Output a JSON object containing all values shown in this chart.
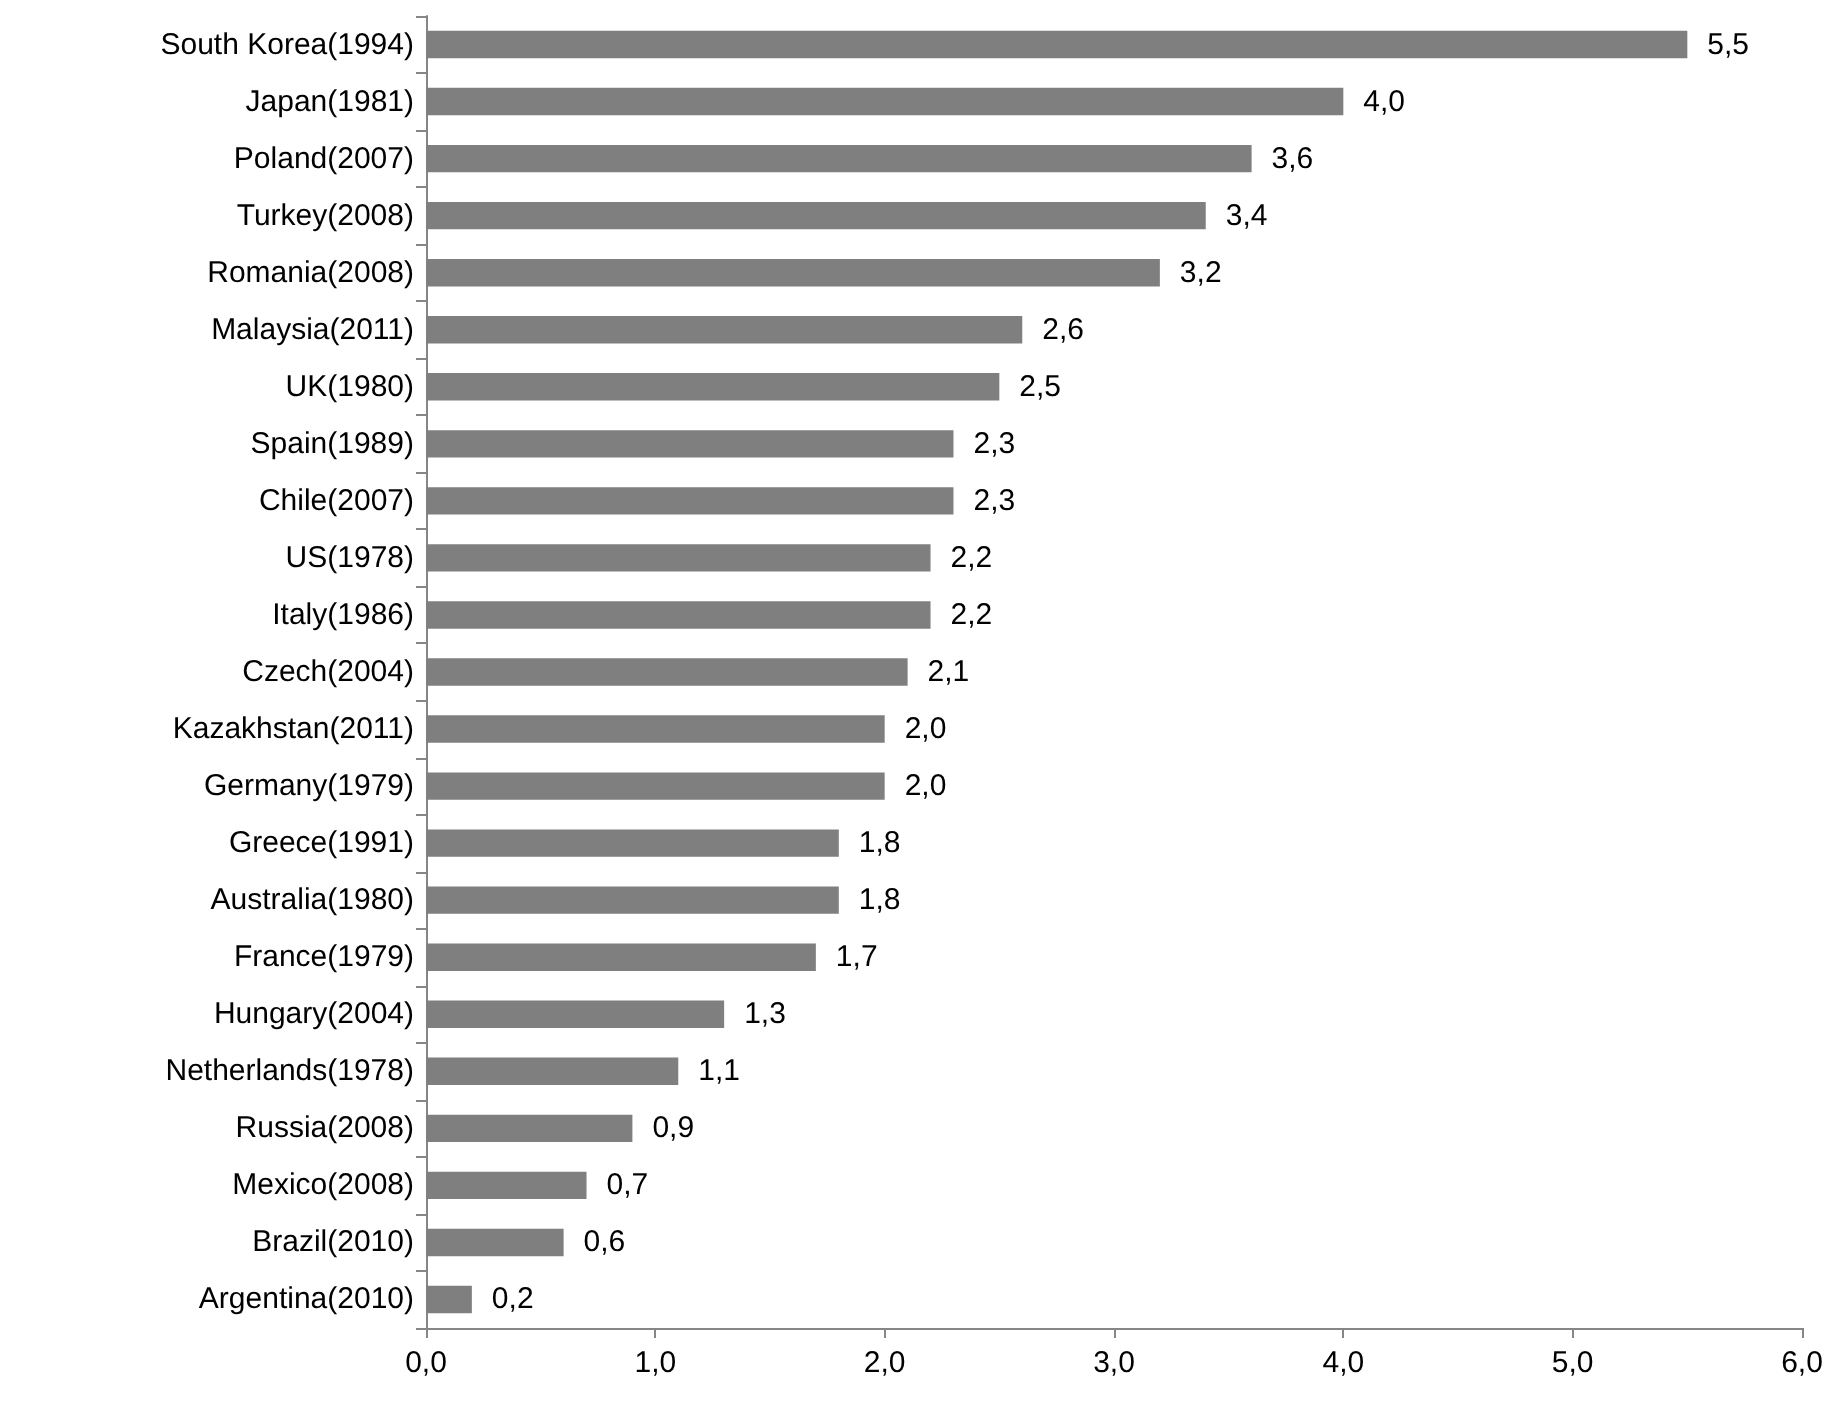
{
  "chart_data": {
    "type": "bar",
    "orientation": "horizontal",
    "categories": [
      "South Korea(1994)",
      "Japan(1981)",
      "Poland(2007)",
      "Turkey(2008)",
      "Romania(2008)",
      "Malaysia(2011)",
      "UK(1980)",
      "Spain(1989)",
      "Chile(2007)",
      "US(1978)",
      "Italy(1986)",
      "Czech(2004)",
      "Kazakhstan(2011)",
      "Germany(1979)",
      "Greece(1991)",
      "Australia(1980)",
      "France(1979)",
      "Hungary(2004)",
      "Netherlands(1978)",
      "Russia(2008)",
      "Mexico(2008)",
      "Brazil(2010)",
      "Argentina(2010)"
    ],
    "values": [
      5.5,
      4.0,
      3.6,
      3.4,
      3.2,
      2.6,
      2.5,
      2.3,
      2.3,
      2.2,
      2.2,
      2.1,
      2.0,
      2.0,
      1.8,
      1.8,
      1.7,
      1.3,
      1.1,
      0.9,
      0.7,
      0.6,
      0.2
    ],
    "value_labels": [
      "5,5",
      "4,0",
      "3,6",
      "3,4",
      "3,2",
      "2,6",
      "2,5",
      "2,3",
      "2,3",
      "2,2",
      "2,2",
      "2,1",
      "2,0",
      "2,0",
      "1,8",
      "1,8",
      "1,7",
      "1,3",
      "1,1",
      "0,9",
      "0,7",
      "0,6",
      "0,2"
    ],
    "color": "#7f7f7f",
    "xlim": [
      0,
      6
    ],
    "xticks": [
      {
        "value": 0,
        "label": "0,0"
      },
      {
        "value": 1,
        "label": "1,0"
      },
      {
        "value": 2,
        "label": "2,0"
      },
      {
        "value": 3,
        "label": "3,0"
      },
      {
        "value": 4,
        "label": "4,0"
      },
      {
        "value": 5,
        "label": "5,0"
      },
      {
        "value": 6,
        "label": "6,0"
      }
    ],
    "grid": false
  }
}
